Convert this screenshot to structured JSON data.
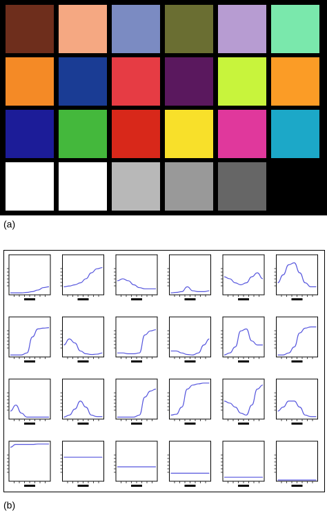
{
  "panel_a": {
    "label": "(a)"
  },
  "panel_b": {
    "label": "(b)"
  },
  "patches": [
    {
      "color": "#6e2e1c",
      "reflectance": [
        0.05,
        0.05,
        0.05,
        0.06,
        0.08,
        0.12,
        0.18,
        0.2
      ]
    },
    {
      "color": "#f5a882",
      "reflectance": [
        0.2,
        0.22,
        0.25,
        0.3,
        0.4,
        0.55,
        0.65,
        0.68
      ]
    },
    {
      "color": "#7b8bc2",
      "reflectance": [
        0.35,
        0.4,
        0.35,
        0.25,
        0.18,
        0.15,
        0.15,
        0.15
      ]
    },
    {
      "color": "#6a6e32",
      "reflectance": [
        0.05,
        0.06,
        0.08,
        0.2,
        0.1,
        0.08,
        0.08,
        0.1
      ]
    },
    {
      "color": "#b79cd2",
      "reflectance": [
        0.45,
        0.4,
        0.3,
        0.25,
        0.3,
        0.45,
        0.55,
        0.4
      ]
    },
    {
      "color": "#7ae8ac",
      "reflectance": [
        0.3,
        0.5,
        0.75,
        0.8,
        0.55,
        0.3,
        0.2,
        0.2
      ]
    },
    {
      "color": "#f48a26",
      "reflectance": [
        0.05,
        0.05,
        0.05,
        0.1,
        0.5,
        0.7,
        0.72,
        0.73
      ]
    },
    {
      "color": "#1a3c94",
      "reflectance": [
        0.3,
        0.45,
        0.35,
        0.15,
        0.08,
        0.06,
        0.07,
        0.1
      ]
    },
    {
      "color": "#e63c44",
      "reflectance": [
        0.1,
        0.1,
        0.08,
        0.08,
        0.1,
        0.55,
        0.65,
        0.68
      ]
    },
    {
      "color": "#5a185e",
      "reflectance": [
        0.15,
        0.15,
        0.1,
        0.06,
        0.05,
        0.1,
        0.3,
        0.45
      ]
    },
    {
      "color": "#c8f43c",
      "reflectance": [
        0.05,
        0.1,
        0.25,
        0.65,
        0.7,
        0.4,
        0.3,
        0.3
      ]
    },
    {
      "color": "#fb9c26",
      "reflectance": [
        0.05,
        0.05,
        0.1,
        0.25,
        0.6,
        0.72,
        0.75,
        0.75
      ]
    },
    {
      "color": "#1c1c98",
      "reflectance": [
        0.2,
        0.35,
        0.15,
        0.05,
        0.05,
        0.05,
        0.05,
        0.05
      ]
    },
    {
      "color": "#44b83c",
      "reflectance": [
        0.05,
        0.1,
        0.25,
        0.45,
        0.3,
        0.1,
        0.06,
        0.06
      ]
    },
    {
      "color": "#d8281a",
      "reflectance": [
        0.05,
        0.05,
        0.05,
        0.05,
        0.1,
        0.55,
        0.7,
        0.75
      ]
    },
    {
      "color": "#f8e02a",
      "reflectance": [
        0.1,
        0.12,
        0.3,
        0.75,
        0.85,
        0.88,
        0.9,
        0.9
      ]
    },
    {
      "color": "#e0389c",
      "reflectance": [
        0.45,
        0.4,
        0.3,
        0.15,
        0.1,
        0.35,
        0.75,
        0.85
      ]
    },
    {
      "color": "#1ca8c8",
      "reflectance": [
        0.2,
        0.3,
        0.45,
        0.45,
        0.3,
        0.1,
        0.06,
        0.06
      ]
    },
    {
      "color": "#ffffff",
      "reflectance": [
        0.85,
        0.92,
        0.92,
        0.92,
        0.92,
        0.93,
        0.93,
        0.93
      ]
    },
    {
      "color": "#ffffff",
      "reflectance": [
        0.6,
        0.6,
        0.6,
        0.6,
        0.6,
        0.6,
        0.6,
        0.6
      ]
    },
    {
      "color": "#b8b8b8",
      "reflectance": [
        0.36,
        0.36,
        0.36,
        0.36,
        0.36,
        0.36,
        0.36,
        0.36
      ]
    },
    {
      "color": "#999999",
      "reflectance": [
        0.2,
        0.2,
        0.2,
        0.2,
        0.2,
        0.2,
        0.2,
        0.2
      ]
    },
    {
      "color": "#666666",
      "reflectance": [
        0.1,
        0.1,
        0.1,
        0.1,
        0.1,
        0.1,
        0.1,
        0.1
      ]
    },
    {
      "color": "#000000",
      "reflectance": [
        0.03,
        0.03,
        0.03,
        0.03,
        0.03,
        0.03,
        0.03,
        0.03
      ]
    }
  ]
}
